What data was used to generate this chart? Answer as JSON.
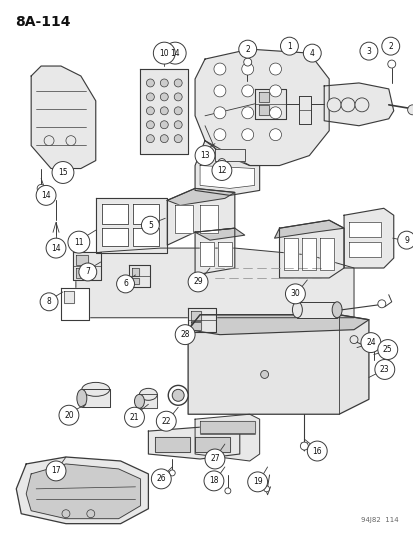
{
  "title": "8A-114",
  "footer": "94J82  114",
  "bg_color": "#ffffff",
  "lc": "#3a3a3a",
  "tc": "#111111",
  "fig_width": 4.14,
  "fig_height": 5.33,
  "dpi": 100
}
